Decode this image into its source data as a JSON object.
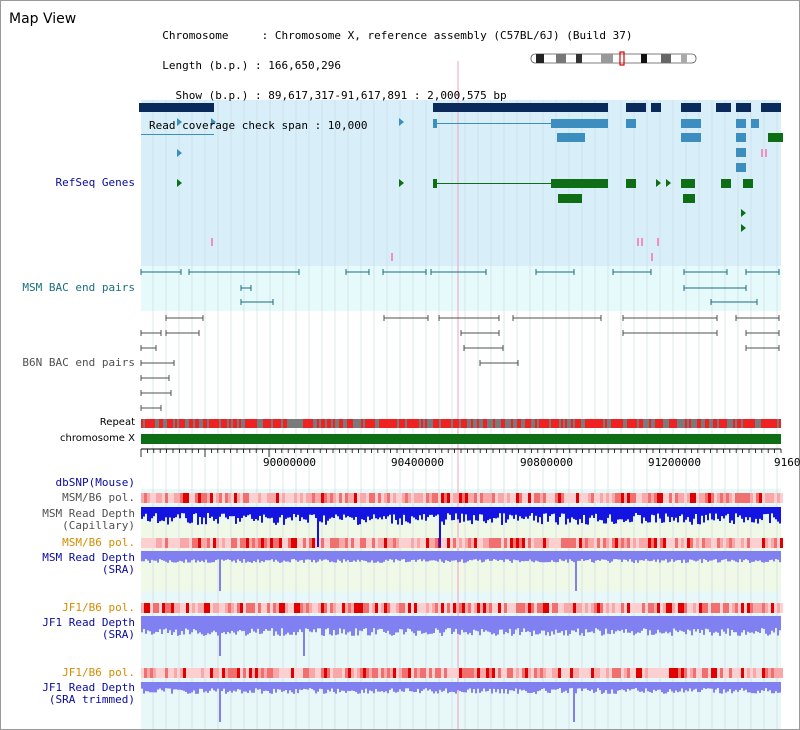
{
  "header": {
    "title": "Map View",
    "info_lines": [
      "  Chromosome     : Chromosome X, reference assembly (C57BL/6J) (Build 37)",
      "  Length (b.p.) : 166,650,296",
      "    Show (b.p.) : 89,617,317-91,617,891 : 2,000,575 bp",
      "Read coverage check span : 10,000"
    ]
  },
  "tracks": {
    "refseq": "RefSeq Genes",
    "msm_bac": "MSM BAC end pairs",
    "b6n_bac": "B6N BAC end pairs",
    "repeat": "Repeat",
    "chromosome": "chromosome X",
    "dbsnp": "dbSNP(Mouse)",
    "msm_b6_pol_1": "MSM/B6 pol.",
    "msm_depth_cap": "MSM Read Depth\n(Capillary)",
    "msm_b6_pol_2": "MSM/B6 pol.",
    "msm_depth_sra": "MSM Read Depth\n(SRA)",
    "jf1_b6_pol_1": "JF1/B6 pol.",
    "jf1_depth_sra": "JF1 Read Depth\n(SRA)",
    "jf1_b6_pol_2": "JF1/B6 pol.",
    "jf1_depth_trim": "JF1 Read Depth\n(SRA trimmed)"
  },
  "axis": {
    "ticks": [
      "90000000",
      "90400000",
      "90800000",
      "91200000",
      "9160"
    ]
  },
  "colors": {
    "refseq_bg": "#d8eff9",
    "bac_bg": "#e6f9fb",
    "track_bg": "#e8f8f8",
    "gene_dark": "#0a2a5c",
    "gene_mid": "#3c8ec0",
    "gene_green": "#0d6e15",
    "bac_teal": "#1a6e7f",
    "bac_gray": "#505050",
    "label_blue": "#0a0aa0",
    "label_orange": "#d88b00",
    "label_teal": "#1a6e7f",
    "depth_blue": "#1414e0",
    "depth_light": "#8080f0",
    "pol_red": "#ee2222"
  }
}
